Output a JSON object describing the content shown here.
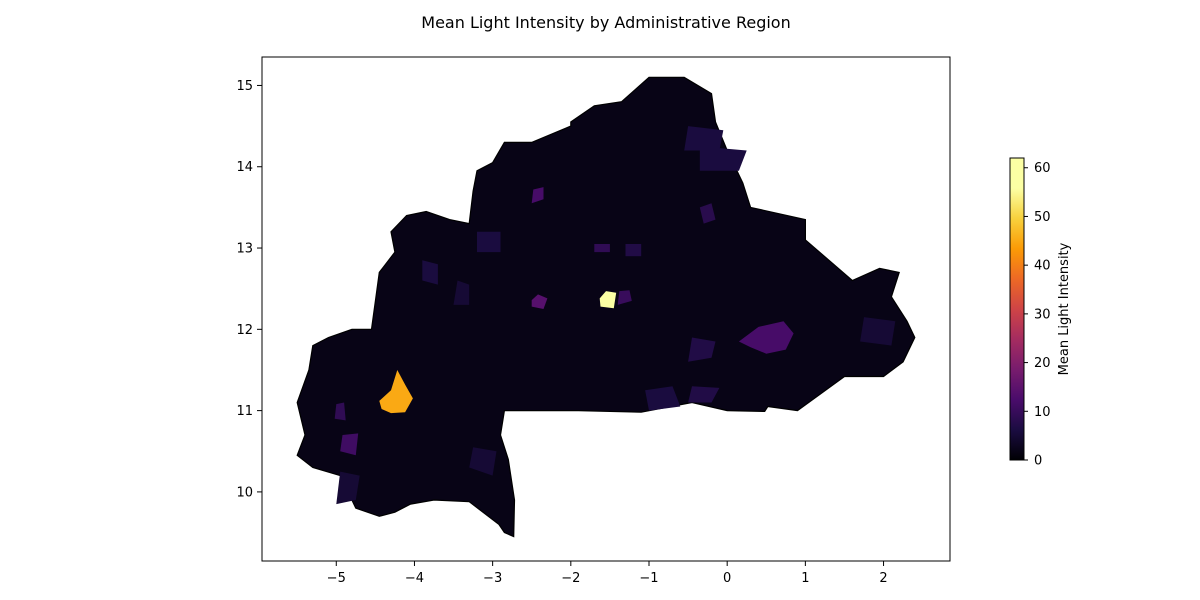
{
  "chart_data": {
    "type": "choropleth",
    "title": "Mean Light Intensity by Administrative Region",
    "xlabel": "",
    "ylabel": "",
    "xlim": [
      -5.95,
      2.85
    ],
    "ylim": [
      9.15,
      15.35
    ],
    "x_ticks": [
      -5,
      -4,
      -3,
      -2,
      -1,
      0,
      1,
      2
    ],
    "x_tick_labels": [
      "−5",
      "−4",
      "−3",
      "−2",
      "−1",
      "0",
      "1",
      "2"
    ],
    "y_ticks": [
      10,
      11,
      12,
      13,
      14,
      15
    ],
    "y_tick_labels": [
      "10",
      "11",
      "12",
      "13",
      "14",
      "15"
    ],
    "colormap": "inferno",
    "colorbar": {
      "label": "Mean Light Intensity",
      "min": 0,
      "max": 62,
      "ticks": [
        0,
        10,
        20,
        30,
        40,
        50,
        60
      ],
      "tick_labels": [
        "0",
        "10",
        "20",
        "30",
        "40",
        "50",
        "60"
      ]
    },
    "grid": false,
    "country_outline": [
      [
        -5.5,
        11.1
      ],
      [
        -5.4,
        10.7
      ],
      [
        -5.5,
        10.45
      ],
      [
        -5.3,
        10.3
      ],
      [
        -4.95,
        10.2
      ],
      [
        -4.75,
        9.8
      ],
      [
        -4.45,
        9.7
      ],
      [
        -4.25,
        9.75
      ],
      [
        -4.05,
        9.85
      ],
      [
        -3.75,
        9.9
      ],
      [
        -3.3,
        9.88
      ],
      [
        -2.92,
        9.6
      ],
      [
        -2.85,
        9.5
      ],
      [
        -2.73,
        9.45
      ],
      [
        -2.72,
        9.9
      ],
      [
        -2.8,
        10.4
      ],
      [
        -2.9,
        10.7
      ],
      [
        -2.85,
        11.0
      ],
      [
        -1.9,
        11.0
      ],
      [
        -1.1,
        10.98
      ],
      [
        -0.45,
        11.1
      ],
      [
        0.0,
        11.0
      ],
      [
        0.48,
        10.99
      ],
      [
        0.52,
        11.05
      ],
      [
        0.9,
        11.0
      ],
      [
        1.5,
        11.42
      ],
      [
        2.0,
        11.42
      ],
      [
        2.25,
        11.6
      ],
      [
        2.4,
        11.9
      ],
      [
        2.3,
        12.1
      ],
      [
        2.1,
        12.4
      ],
      [
        2.2,
        12.7
      ],
      [
        1.95,
        12.75
      ],
      [
        1.6,
        12.6
      ],
      [
        1.0,
        13.1
      ],
      [
        1.0,
        13.35
      ],
      [
        0.3,
        13.5
      ],
      [
        0.2,
        13.8
      ],
      [
        0.0,
        14.2
      ],
      [
        -0.15,
        14.55
      ],
      [
        -0.2,
        14.9
      ],
      [
        -0.55,
        15.1
      ],
      [
        -1.0,
        15.1
      ],
      [
        -1.35,
        14.8
      ],
      [
        -1.7,
        14.75
      ],
      [
        -2.0,
        14.55
      ],
      [
        -2.0,
        14.5
      ],
      [
        -2.5,
        14.3
      ],
      [
        -2.85,
        14.3
      ],
      [
        -3.0,
        14.05
      ],
      [
        -3.2,
        13.95
      ],
      [
        -3.25,
        13.7
      ],
      [
        -3.3,
        13.3
      ],
      [
        -3.55,
        13.35
      ],
      [
        -3.85,
        13.45
      ],
      [
        -4.1,
        13.4
      ],
      [
        -4.3,
        13.2
      ],
      [
        -4.25,
        12.95
      ],
      [
        -4.45,
        12.7
      ],
      [
        -4.5,
        12.35
      ],
      [
        -4.55,
        12.0
      ],
      [
        -4.8,
        12.0
      ],
      [
        -5.1,
        11.9
      ],
      [
        -5.3,
        11.8
      ],
      [
        -5.35,
        11.5
      ],
      [
        -5.5,
        11.1
      ]
    ],
    "regions": [
      {
        "value": 62,
        "points": [
          [
            -1.62,
            12.28
          ],
          [
            -1.45,
            12.26
          ],
          [
            -1.42,
            12.45
          ],
          [
            -1.55,
            12.47
          ],
          [
            -1.63,
            12.38
          ]
        ]
      },
      {
        "value": 45,
        "points": [
          [
            -4.45,
            11.12
          ],
          [
            -4.3,
            11.25
          ],
          [
            -4.22,
            11.5
          ],
          [
            -4.12,
            11.32
          ],
          [
            -4.02,
            11.15
          ],
          [
            -4.12,
            10.98
          ],
          [
            -4.3,
            10.97
          ],
          [
            -4.42,
            11.02
          ]
        ]
      },
      {
        "value": 12,
        "points": [
          [
            0.15,
            11.85
          ],
          [
            0.4,
            12.03
          ],
          [
            0.72,
            12.1
          ],
          [
            0.85,
            11.95
          ],
          [
            0.75,
            11.75
          ],
          [
            0.5,
            11.7
          ],
          [
            0.3,
            11.78
          ]
        ]
      },
      {
        "value": 14,
        "points": [
          [
            -2.5,
            12.28
          ],
          [
            -2.35,
            12.25
          ],
          [
            -2.3,
            12.38
          ],
          [
            -2.42,
            12.43
          ],
          [
            -2.5,
            12.36
          ]
        ]
      },
      {
        "value": 12,
        "points": [
          [
            -2.5,
            13.55
          ],
          [
            -2.35,
            13.6
          ],
          [
            -2.35,
            13.75
          ],
          [
            -2.48,
            13.72
          ]
        ]
      },
      {
        "value": 10,
        "points": [
          [
            -1.4,
            12.3
          ],
          [
            -1.22,
            12.35
          ],
          [
            -1.25,
            12.48
          ],
          [
            -1.38,
            12.47
          ]
        ]
      },
      {
        "value": 11,
        "points": [
          [
            -4.95,
            10.5
          ],
          [
            -4.75,
            10.45
          ],
          [
            -4.72,
            10.72
          ],
          [
            -4.92,
            10.7
          ]
        ]
      },
      {
        "value": 9,
        "points": [
          [
            -5.02,
            10.9
          ],
          [
            -4.88,
            10.88
          ],
          [
            -4.9,
            11.1
          ],
          [
            -5.0,
            11.08
          ]
        ]
      },
      {
        "value": 6,
        "points": [
          [
            -0.35,
            13.95
          ],
          [
            0.15,
            13.95
          ],
          [
            0.25,
            14.2
          ],
          [
            -0.35,
            14.25
          ]
        ]
      },
      {
        "value": 5,
        "points": [
          [
            -3.3,
            10.3
          ],
          [
            -3.0,
            10.2
          ],
          [
            -2.95,
            10.5
          ],
          [
            -3.25,
            10.55
          ]
        ]
      },
      {
        "value": 5,
        "points": [
          [
            -5.0,
            9.85
          ],
          [
            -4.75,
            9.9
          ],
          [
            -4.7,
            10.2
          ],
          [
            -4.95,
            10.25
          ]
        ]
      },
      {
        "value": 6,
        "points": [
          [
            -1.0,
            11.0
          ],
          [
            -0.6,
            11.05
          ],
          [
            -0.7,
            11.3
          ],
          [
            -1.05,
            11.25
          ]
        ]
      },
      {
        "value": 7,
        "points": [
          [
            -0.5,
            11.6
          ],
          [
            -0.2,
            11.65
          ],
          [
            -0.15,
            11.85
          ],
          [
            -0.45,
            11.9
          ]
        ]
      },
      {
        "value": 6,
        "points": [
          [
            -3.9,
            12.6
          ],
          [
            -3.7,
            12.55
          ],
          [
            -3.7,
            12.8
          ],
          [
            -3.9,
            12.85
          ]
        ]
      },
      {
        "value": 5,
        "points": [
          [
            -3.5,
            12.3
          ],
          [
            -3.3,
            12.3
          ],
          [
            -3.3,
            12.55
          ],
          [
            -3.45,
            12.6
          ]
        ]
      },
      {
        "value": 9,
        "points": [
          [
            -1.7,
            12.95
          ],
          [
            -1.5,
            12.95
          ],
          [
            -1.5,
            13.05
          ],
          [
            -1.7,
            13.05
          ]
        ]
      },
      {
        "value": 8,
        "points": [
          [
            -0.3,
            13.3
          ],
          [
            -0.15,
            13.35
          ],
          [
            -0.2,
            13.55
          ],
          [
            -0.35,
            13.5
          ]
        ]
      },
      {
        "value": 6,
        "points": [
          [
            -3.2,
            12.95
          ],
          [
            -2.9,
            12.95
          ],
          [
            -2.9,
            13.2
          ],
          [
            -3.2,
            13.2
          ]
        ]
      },
      {
        "value": 6,
        "points": [
          [
            -0.55,
            14.2
          ],
          [
            -0.1,
            14.2
          ],
          [
            -0.05,
            14.45
          ],
          [
            -0.5,
            14.5
          ]
        ]
      },
      {
        "value": 5,
        "points": [
          [
            1.7,
            11.85
          ],
          [
            2.1,
            11.8
          ],
          [
            2.15,
            12.1
          ],
          [
            1.75,
            12.15
          ]
        ]
      },
      {
        "value": 7,
        "points": [
          [
            -1.3,
            12.9
          ],
          [
            -1.1,
            12.9
          ],
          [
            -1.1,
            13.05
          ],
          [
            -1.3,
            13.05
          ]
        ]
      },
      {
        "value": 7,
        "points": [
          [
            -0.5,
            11.1
          ],
          [
            -0.2,
            11.1
          ],
          [
            -0.1,
            11.28
          ],
          [
            -0.45,
            11.3
          ]
        ]
      }
    ]
  }
}
